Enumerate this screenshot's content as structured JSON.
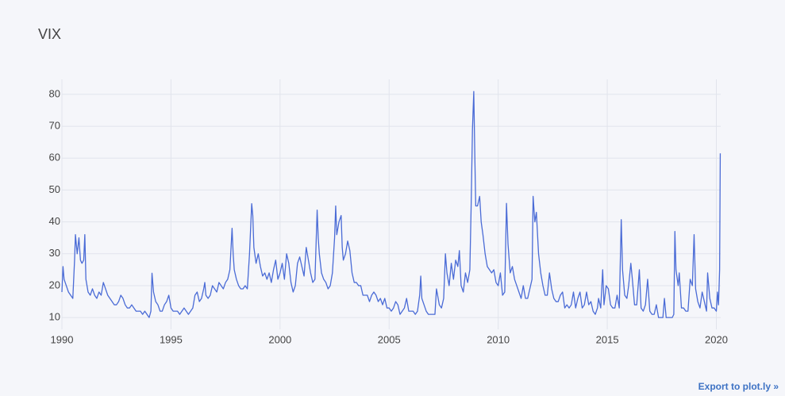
{
  "chart_data": {
    "type": "line",
    "title": "VIX",
    "color": "#4a6bd6",
    "grid": true,
    "xlim": [
      1990,
      2020.2
    ],
    "xticks": [
      1990,
      1995,
      2000,
      2005,
      2010,
      2015,
      2020
    ],
    "ylim": [
      6.3,
      84.7
    ],
    "yticks": [
      10,
      20,
      30,
      40,
      50,
      60,
      70,
      80
    ],
    "x": [
      1990.0,
      1990.05,
      1990.1,
      1990.2,
      1990.3,
      1990.4,
      1990.5,
      1990.58,
      1990.62,
      1990.7,
      1990.78,
      1990.85,
      1990.92,
      1991.0,
      1991.05,
      1991.1,
      1991.2,
      1991.3,
      1991.4,
      1991.5,
      1991.6,
      1991.7,
      1991.8,
      1991.9,
      1992.0,
      1992.1,
      1992.2,
      1992.3,
      1992.4,
      1992.5,
      1992.6,
      1992.7,
      1992.8,
      1992.9,
      1993.0,
      1993.1,
      1993.2,
      1993.3,
      1993.4,
      1993.5,
      1993.6,
      1993.7,
      1993.8,
      1993.9,
      1994.0,
      1994.08,
      1994.13,
      1994.2,
      1994.3,
      1994.4,
      1994.5,
      1994.6,
      1994.7,
      1994.8,
      1994.9,
      1995.0,
      1995.1,
      1995.2,
      1995.3,
      1995.4,
      1995.5,
      1995.6,
      1995.7,
      1995.8,
      1995.9,
      1996.0,
      1996.1,
      1996.2,
      1996.3,
      1996.4,
      1996.5,
      1996.55,
      1996.6,
      1996.7,
      1996.8,
      1996.9,
      1997.0,
      1997.1,
      1997.2,
      1997.3,
      1997.4,
      1997.5,
      1997.6,
      1997.7,
      1997.8,
      1997.85,
      1997.9,
      1998.0,
      1998.1,
      1998.2,
      1998.3,
      1998.4,
      1998.5,
      1998.6,
      1998.7,
      1998.75,
      1998.8,
      1998.9,
      1999.0,
      1999.1,
      1999.2,
      1999.3,
      1999.4,
      1999.5,
      1999.6,
      1999.7,
      1999.8,
      1999.9,
      2000.0,
      2000.1,
      2000.2,
      2000.3,
      2000.4,
      2000.5,
      2000.6,
      2000.7,
      2000.8,
      2000.9,
      2001.0,
      2001.1,
      2001.2,
      2001.3,
      2001.4,
      2001.5,
      2001.6,
      2001.7,
      2001.75,
      2001.8,
      2001.9,
      2002.0,
      2002.1,
      2002.2,
      2002.3,
      2002.4,
      2002.5,
      2002.55,
      2002.6,
      2002.7,
      2002.8,
      2002.85,
      2002.9,
      2003.0,
      2003.1,
      2003.2,
      2003.3,
      2003.4,
      2003.5,
      2003.6,
      2003.7,
      2003.8,
      2003.9,
      2004.0,
      2004.1,
      2004.2,
      2004.3,
      2004.4,
      2004.5,
      2004.6,
      2004.7,
      2004.8,
      2004.9,
      2005.0,
      2005.1,
      2005.2,
      2005.3,
      2005.4,
      2005.5,
      2005.6,
      2005.7,
      2005.8,
      2005.9,
      2006.0,
      2006.1,
      2006.2,
      2006.3,
      2006.4,
      2006.45,
      2006.5,
      2006.6,
      2006.7,
      2006.8,
      2006.9,
      2007.0,
      2007.1,
      2007.17,
      2007.3,
      2007.4,
      2007.5,
      2007.58,
      2007.65,
      2007.75,
      2007.85,
      2007.95,
      2008.05,
      2008.15,
      2008.22,
      2008.3,
      2008.4,
      2008.5,
      2008.6,
      2008.7,
      2008.76,
      2008.82,
      2008.88,
      2008.93,
      2008.97,
      2009.05,
      2009.15,
      2009.22,
      2009.3,
      2009.4,
      2009.5,
      2009.6,
      2009.7,
      2009.8,
      2009.9,
      2010.0,
      2010.1,
      2010.2,
      2010.3,
      2010.38,
      2010.45,
      2010.55,
      2010.65,
      2010.75,
      2010.85,
      2010.95,
      2011.05,
      2011.15,
      2011.25,
      2011.35,
      2011.45,
      2011.55,
      2011.6,
      2011.68,
      2011.75,
      2011.85,
      2011.95,
      2012.05,
      2012.15,
      2012.25,
      2012.35,
      2012.45,
      2012.55,
      2012.65,
      2012.75,
      2012.85,
      2012.95,
      2013.05,
      2013.15,
      2013.25,
      2013.35,
      2013.45,
      2013.55,
      2013.65,
      2013.75,
      2013.85,
      2013.95,
      2014.05,
      2014.15,
      2014.25,
      2014.35,
      2014.45,
      2014.55,
      2014.6,
      2014.7,
      2014.79,
      2014.85,
      2014.95,
      2015.05,
      2015.15,
      2015.25,
      2015.35,
      2015.45,
      2015.55,
      2015.64,
      2015.7,
      2015.8,
      2015.9,
      2015.98,
      2016.08,
      2016.15,
      2016.25,
      2016.35,
      2016.47,
      2016.55,
      2016.65,
      2016.75,
      2016.85,
      2016.95,
      2017.05,
      2017.15,
      2017.25,
      2017.35,
      2017.45,
      2017.55,
      2017.62,
      2017.7,
      2017.8,
      2017.9,
      2017.98,
      2018.05,
      2018.1,
      2018.15,
      2018.25,
      2018.3,
      2018.4,
      2018.5,
      2018.6,
      2018.7,
      2018.8,
      2018.9,
      2018.98,
      2019.05,
      2019.15,
      2019.25,
      2019.35,
      2019.45,
      2019.55,
      2019.6,
      2019.7,
      2019.8,
      2019.9,
      2020.0,
      2020.05,
      2020.1,
      2020.15,
      2020.18
    ],
    "values": [
      18,
      26,
      22,
      20,
      18,
      17,
      16,
      28,
      36,
      30,
      35,
      28,
      27,
      28,
      36,
      22,
      18,
      17,
      19,
      17,
      16,
      18,
      17,
      21,
      19,
      17,
      16,
      15,
      14,
      14,
      15,
      17,
      16,
      14,
      13,
      13,
      14,
      13,
      12,
      12,
      12,
      11,
      12,
      11,
      10,
      12,
      23.9,
      18,
      15,
      14,
      12,
      12,
      14,
      15,
      17,
      13,
      12,
      12,
      12,
      11,
      12,
      13,
      12,
      11,
      12,
      13,
      17,
      18,
      15,
      16,
      19,
      21,
      17,
      16,
      17,
      20,
      19,
      18,
      21,
      20,
      19,
      21,
      22,
      25,
      38,
      30,
      25,
      22,
      20,
      19,
      19,
      20,
      19,
      30,
      45.7,
      42,
      32,
      27,
      30,
      26,
      23,
      24,
      22,
      24,
      21,
      25,
      28,
      22,
      24,
      27,
      22,
      30,
      27,
      21,
      18,
      20,
      27,
      29,
      26,
      23,
      32,
      28,
      24,
      21,
      22,
      43.7,
      35,
      30,
      24,
      22,
      21,
      19,
      20,
      24,
      35,
      45,
      36,
      40,
      42,
      32,
      28,
      30,
      34,
      31,
      24,
      21,
      21,
      20,
      20,
      17,
      17,
      17,
      15,
      17,
      18,
      17,
      15,
      16,
      14,
      16,
      13,
      13,
      12,
      13,
      15,
      14,
      11,
      12,
      13,
      16,
      12,
      12,
      12,
      11,
      12,
      17,
      23,
      16,
      14,
      12,
      11,
      11,
      11,
      11,
      19,
      14,
      13,
      16,
      30,
      24,
      20,
      27,
      22,
      28,
      26,
      31,
      20,
      18,
      24,
      21,
      25,
      45,
      69,
      80.9,
      60,
      45,
      45,
      48,
      40,
      36,
      30,
      26,
      25,
      24,
      25,
      21,
      20,
      24,
      17,
      18,
      45.8,
      33,
      24,
      26,
      22,
      20,
      18,
      16,
      20,
      16,
      16,
      19,
      22,
      48,
      40,
      43,
      30,
      24,
      20,
      17,
      17,
      24,
      19,
      16,
      15,
      15,
      17,
      18,
      13,
      14,
      13,
      14,
      18,
      13,
      16,
      18,
      13,
      14,
      18,
      14,
      15,
      12,
      11,
      13,
      16,
      13,
      25,
      14,
      20,
      19,
      14,
      13,
      13,
      17,
      13,
      40.7,
      25,
      17,
      16,
      20,
      27,
      22,
      14,
      14,
      25,
      13,
      12,
      14,
      22,
      12,
      11,
      11,
      14,
      10,
      10,
      10,
      16,
      10,
      10,
      10,
      10,
      11,
      37,
      25,
      20,
      24,
      13,
      13,
      12,
      12,
      22,
      20,
      36,
      19,
      15,
      13,
      18,
      15,
      12,
      24,
      16,
      13,
      13,
      12,
      18,
      14,
      25,
      61.5
    ]
  },
  "link": "Export to plot.ly »"
}
